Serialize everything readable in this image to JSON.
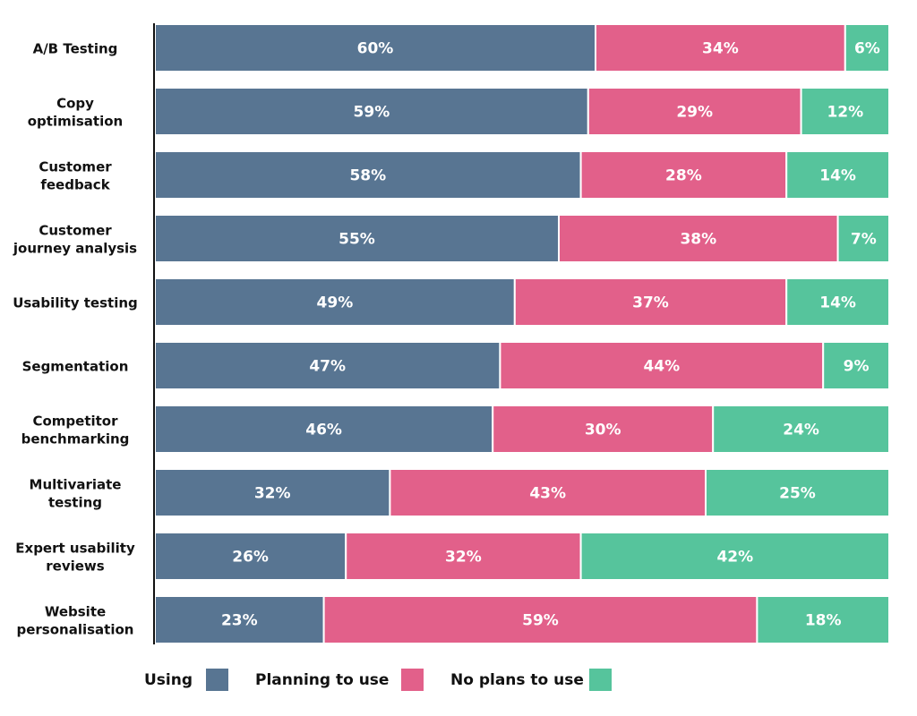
{
  "chart_data": {
    "type": "bar",
    "orientation": "horizontal",
    "stacked": true,
    "categories": [
      "A/B Testing",
      "Copy optimisation",
      "Customer feedback",
      "Customer journey analysis",
      "Usability testing",
      "Segmentation",
      "Competitor benchmarking",
      "Multivariate testing",
      "Expert usability reviews",
      "Website personalisation"
    ],
    "category_lines": [
      [
        "A/B Testing"
      ],
      [
        "Copy",
        "optimisation"
      ],
      [
        "Customer",
        "feedback"
      ],
      [
        "Customer",
        "journey analysis"
      ],
      [
        "Usability testing"
      ],
      [
        "Segmentation"
      ],
      [
        "Competitor",
        "benchmarking"
      ],
      [
        "Multivariate",
        "testing"
      ],
      [
        "Expert usability",
        "reviews"
      ],
      [
        "Website",
        "personalisation"
      ]
    ],
    "series": [
      {
        "name": "Using",
        "color": "#587592",
        "values": [
          60,
          59,
          58,
          55,
          49,
          47,
          46,
          32,
          26,
          23
        ]
      },
      {
        "name": "Planning to use",
        "color": "#e2608a",
        "values": [
          34,
          29,
          28,
          38,
          37,
          44,
          30,
          43,
          32,
          59
        ]
      },
      {
        "name": "No plans to use",
        "color": "#56c49c",
        "values": [
          6,
          12,
          14,
          7,
          14,
          9,
          24,
          25,
          42,
          18
        ]
      }
    ],
    "value_suffix": "%",
    "xlim": [
      0,
      100
    ],
    "grid": false,
    "legend_position": "bottom"
  }
}
